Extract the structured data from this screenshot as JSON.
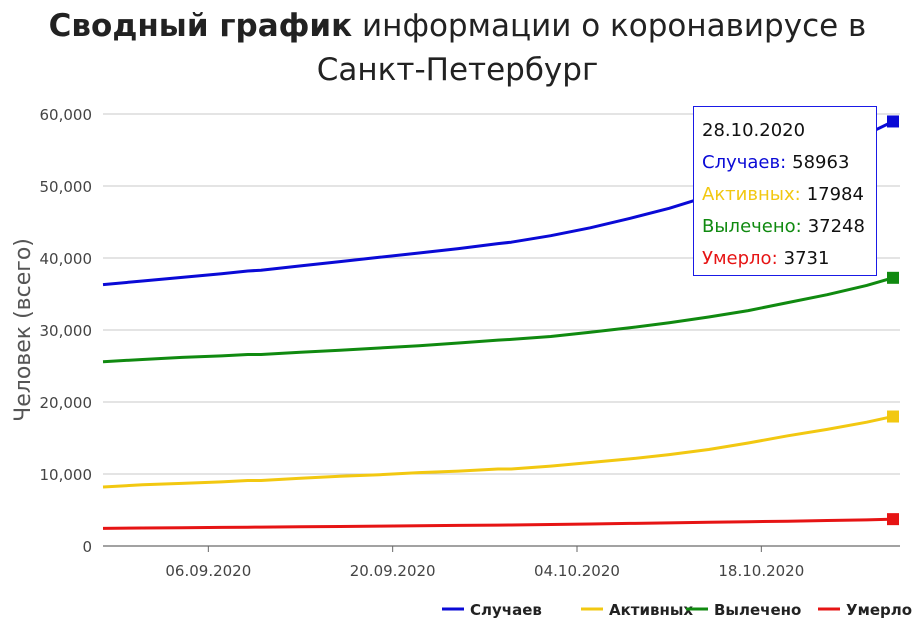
{
  "title": {
    "bold": "Сводный график",
    "rest": " информации о коронавирусе в Санкт-Петербург"
  },
  "chart_data": {
    "type": "line",
    "ylabel": "Человек (всего)",
    "xlabel": "",
    "ylim": [
      0,
      60000
    ],
    "yticks": [
      0,
      10000,
      20000,
      30000,
      40000,
      50000,
      60000
    ],
    "ytick_labels": [
      "0",
      "10,000",
      "20,000",
      "30,000",
      "40,000",
      "50,000",
      "60,000"
    ],
    "xticks": [
      {
        "date": "2020-09-06",
        "label": "06.09.2020"
      },
      {
        "date": "2020-09-20",
        "label": "20.09.2020"
      },
      {
        "date": "2020-10-04",
        "label": "04.10.2020"
      },
      {
        "date": "2020-10-18",
        "label": "18.10.2020"
      }
    ],
    "x": [
      "2020-08-29",
      "2020-09-01",
      "2020-09-04",
      "2020-09-07",
      "2020-09-09",
      "2020-09-10",
      "2020-09-13",
      "2020-09-16",
      "2020-09-19",
      "2020-09-22",
      "2020-09-25",
      "2020-09-28",
      "2020-09-29",
      "2020-10-02",
      "2020-10-05",
      "2020-10-08",
      "2020-10-11",
      "2020-10-14",
      "2020-10-17",
      "2020-10-20",
      "2020-10-23",
      "2020-10-26",
      "2020-10-28"
    ],
    "series": [
      {
        "name": "Случаев",
        "color": "#0a0ad6",
        "values": [
          36300,
          36800,
          37300,
          37800,
          38200,
          38300,
          38900,
          39500,
          40100,
          40700,
          41300,
          42000,
          42200,
          43100,
          44200,
          45500,
          46900,
          48600,
          50500,
          52400,
          54600,
          57200,
          58963
        ]
      },
      {
        "name": "Активных",
        "color": "#f2c811",
        "values": [
          8200,
          8500,
          8700,
          8900,
          9100,
          9100,
          9400,
          9700,
          9900,
          10200,
          10400,
          10700,
          10700,
          11100,
          11600,
          12100,
          12700,
          13400,
          14300,
          15300,
          16200,
          17200,
          17984
        ]
      },
      {
        "name": "Вылечено",
        "color": "#108a10",
        "values": [
          25600,
          25900,
          26200,
          26400,
          26600,
          26600,
          26900,
          27200,
          27500,
          27800,
          28200,
          28600,
          28700,
          29100,
          29700,
          30300,
          31000,
          31800,
          32700,
          33800,
          34900,
          36200,
          37248
        ]
      },
      {
        "name": "Умерло",
        "color": "#e61414",
        "values": [
          2450,
          2500,
          2540,
          2580,
          2610,
          2620,
          2660,
          2710,
          2760,
          2810,
          2860,
          2900,
          2910,
          2980,
          3060,
          3140,
          3210,
          3290,
          3370,
          3450,
          3540,
          3630,
          3731
        ]
      }
    ],
    "legend_position": "bottom-right",
    "grid": true
  },
  "tooltip": {
    "date": "28.10.2020",
    "rows": [
      {
        "label": "Случаев:",
        "value": "58963",
        "color": "#0a0ad6"
      },
      {
        "label": "Активных:",
        "value": "17984",
        "color": "#f2c811"
      },
      {
        "label": "Вылечено:",
        "value": "37248",
        "color": "#108a10"
      },
      {
        "label": "Умерло:",
        "value": "3731",
        "color": "#e61414"
      }
    ]
  }
}
